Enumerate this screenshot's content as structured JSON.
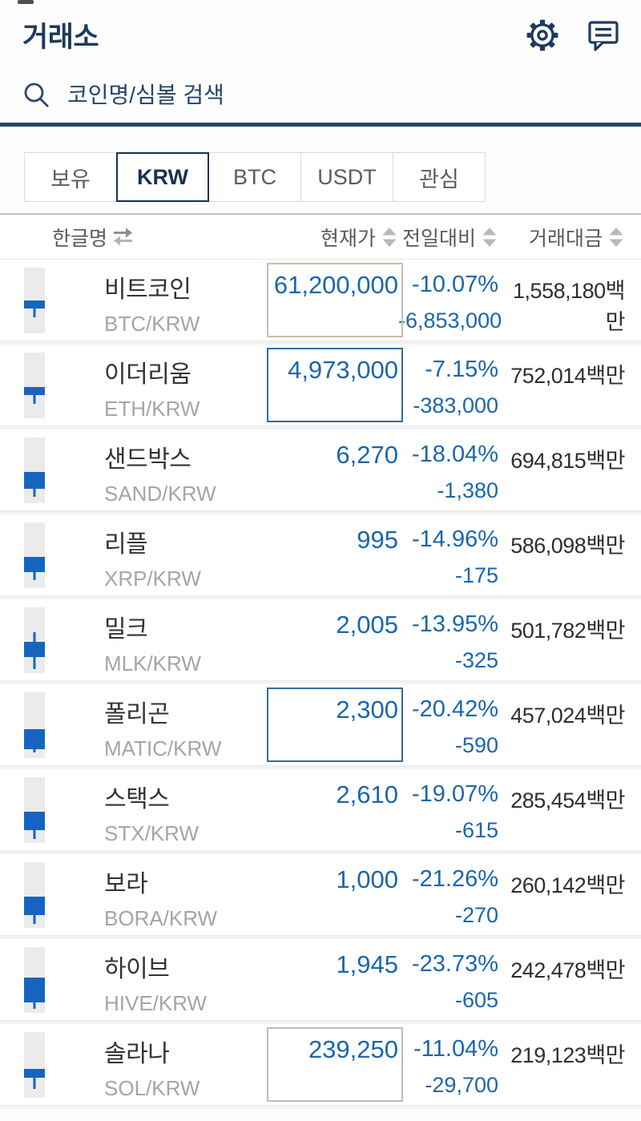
{
  "header": {
    "title": "거래소"
  },
  "search": {
    "placeholder": "코인명/심볼 검색"
  },
  "tabs": [
    {
      "label": "보유",
      "active": false
    },
    {
      "label": "KRW",
      "active": true
    },
    {
      "label": "BTC",
      "active": false
    },
    {
      "label": "USDT",
      "active": false
    },
    {
      "label": "관심",
      "active": false
    }
  ],
  "table": {
    "columns": [
      {
        "label": "한글명",
        "sort": "swap"
      },
      {
        "label": "현재가",
        "sort": "updown"
      },
      {
        "label": "전일대비",
        "sort": "updown"
      },
      {
        "label": "거래대금",
        "sort": "updown"
      }
    ],
    "rows": [
      {
        "name": "비트코인",
        "pair": "BTC/KRW",
        "price": "61,200,000",
        "change_pct": "-10.07%",
        "change_amt": "-6,853,000",
        "volume": "1,558,180백만",
        "price_box": "tan",
        "candle": {
          "bt": 50,
          "bh": 12,
          "wt": 50,
          "wb": 76
        }
      },
      {
        "name": "이더리움",
        "pair": "ETH/KRW",
        "price": "4,973,000",
        "change_pct": "-7.15%",
        "change_amt": "-383,000",
        "volume": "752,014백만",
        "price_box": "blue",
        "candle": {
          "bt": 53,
          "bh": 12,
          "wt": 53,
          "wb": 78
        }
      },
      {
        "name": "샌드박스",
        "pair": "SAND/KRW",
        "price": "6,270",
        "change_pct": "-18.04%",
        "change_amt": "-1,380",
        "volume": "694,815백만",
        "price_box": null,
        "candle": {
          "bt": 52,
          "bh": 26,
          "wt": 52,
          "wb": 90
        }
      },
      {
        "name": "리플",
        "pair": "XRP/KRW",
        "price": "995",
        "change_pct": "-14.96%",
        "change_amt": "-175",
        "volume": "586,098백만",
        "price_box": null,
        "candle": {
          "bt": 52,
          "bh": 24,
          "wt": 52,
          "wb": 88
        }
      },
      {
        "name": "밀크",
        "pair": "MLK/KRW",
        "price": "2,005",
        "change_pct": "-13.95%",
        "change_amt": "-325",
        "volume": "501,782백만",
        "price_box": null,
        "candle": {
          "bt": 52,
          "bh": 24,
          "wt": 38,
          "wb": 94
        }
      },
      {
        "name": "폴리곤",
        "pair": "MATIC/KRW",
        "price": "2,300",
        "change_pct": "-20.42%",
        "change_amt": "-590",
        "volume": "457,024백만",
        "price_box": "blue",
        "candle": {
          "bt": 56,
          "bh": 30,
          "wt": 56,
          "wb": 92
        }
      },
      {
        "name": "스택스",
        "pair": "STX/KRW",
        "price": "2,610",
        "change_pct": "-19.07%",
        "change_amt": "-615",
        "volume": "285,454백만",
        "price_box": null,
        "candle": {
          "bt": 52,
          "bh": 28,
          "wt": 52,
          "wb": 94
        }
      },
      {
        "name": "보라",
        "pair": "BORA/KRW",
        "price": "1,000",
        "change_pct": "-21.26%",
        "change_amt": "-270",
        "volume": "260,142백만",
        "price_box": null,
        "candle": {
          "bt": 52,
          "bh": 28,
          "wt": 52,
          "wb": 94
        }
      },
      {
        "name": "하이브",
        "pair": "HIVE/KRW",
        "price": "1,945",
        "change_pct": "-23.73%",
        "change_amt": "-605",
        "volume": "242,478백만",
        "price_box": null,
        "candle": {
          "bt": 46,
          "bh": 38,
          "wt": 46,
          "wb": 94
        }
      },
      {
        "name": "솔라나",
        "pair": "SOL/KRW",
        "price": "239,250",
        "change_pct": "-11.04%",
        "change_amt": "-29,700",
        "volume": "219,123백만",
        "price_box": "tan",
        "candle": {
          "bt": 56,
          "bh": 14,
          "wt": 56,
          "wb": 86
        }
      }
    ]
  },
  "colors": {
    "navy": "#1d3a5c",
    "price_blue": "#1a66ad",
    "candle_blue": "#1565c0",
    "tan_border": "#c7bdae",
    "blue_border": "#2f6d9e",
    "active_tab_border": "#17334f"
  }
}
